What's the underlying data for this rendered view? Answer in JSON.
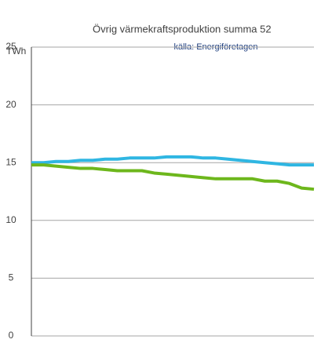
{
  "chart_data": {
    "type": "line",
    "title": "Övrig värmekraftsproduktion summa 52",
    "subtitle": "källa: Energiföretagen",
    "y_label": "TWh",
    "categories": [
      null,
      null,
      null,
      null,
      null,
      null,
      null,
      null,
      null,
      null,
      null,
      null,
      null,
      null,
      null,
      null,
      null,
      null,
      null,
      null,
      null,
      null,
      null,
      null
    ],
    "series": [
      {
        "color": "#2fb6e2",
        "values": [
          15.0,
          15.0,
          15.1,
          15.1,
          15.2,
          15.2,
          15.3,
          15.3,
          15.4,
          15.4,
          15.4,
          15.5,
          15.5,
          15.5,
          15.4,
          15.4,
          15.3,
          15.2,
          15.1,
          15.0,
          14.9,
          14.8,
          14.8,
          14.8
        ]
      },
      {
        "color": "#6db71c",
        "values": [
          14.8,
          14.8,
          14.7,
          14.6,
          14.5,
          14.5,
          14.4,
          14.3,
          14.3,
          14.3,
          14.1,
          14.0,
          13.9,
          13.8,
          13.7,
          13.6,
          13.6,
          13.6,
          13.6,
          13.4,
          13.4,
          13.2,
          12.8,
          12.7
        ]
      }
    ],
    "ylim": [
      0,
      25
    ],
    "yticks": [
      0,
      5,
      10,
      15,
      20,
      25
    ],
    "grid": true
  }
}
